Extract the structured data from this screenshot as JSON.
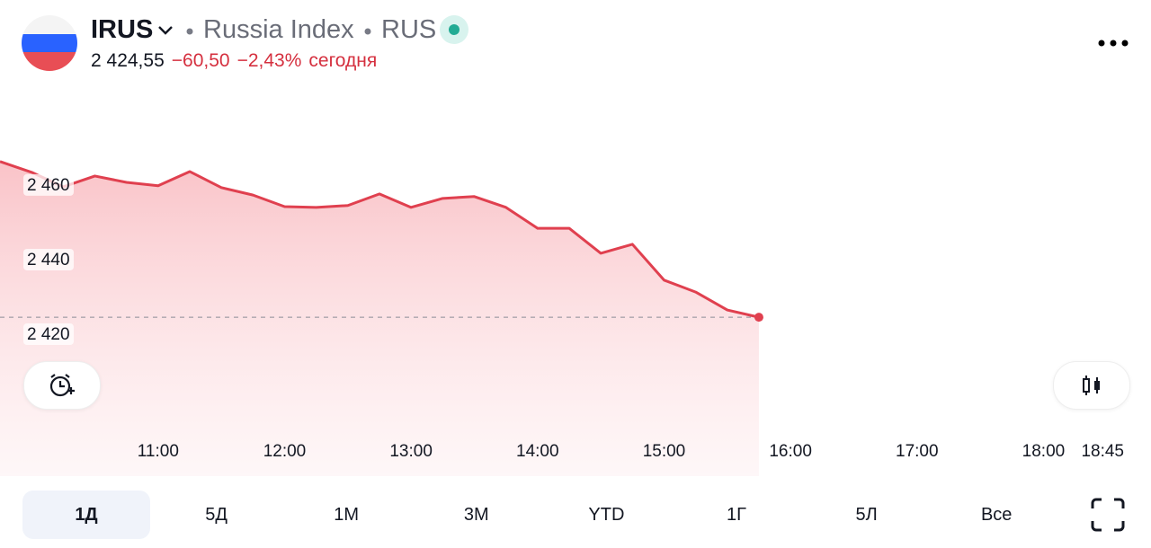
{
  "header": {
    "symbol": "IRUS",
    "name": "Russia Index",
    "exchange": "RUS",
    "price": "2 424,55",
    "change": "−60,50",
    "change_percent": "−2,43%",
    "period_note": "сегодня"
  },
  "chart_data": {
    "type": "line",
    "color": "#e0404f",
    "x": [
      9.75,
      10,
      10.25,
      10.5,
      10.75,
      11,
      11.25,
      11.5,
      11.75,
      12,
      12.25,
      12.5,
      12.75,
      13,
      13.25,
      13.5,
      13.75,
      14,
      14.25,
      14.5,
      14.75,
      15,
      15.25,
      15.5,
      15.75
    ],
    "values": [
      2466.3,
      2463.4,
      2459.5,
      2462.4,
      2460.7,
      2459.8,
      2463.6,
      2459.3,
      2457.3,
      2454.2,
      2454.0,
      2454.5,
      2457.6,
      2454.0,
      2456.4,
      2456.9,
      2454.0,
      2448.4,
      2448.4,
      2441.7,
      2444.1,
      2434.5,
      2431.3,
      2426.5,
      2424.55
    ],
    "xlim": [
      9.75,
      18.85
    ],
    "ylim": [
      2394,
      2485.5
    ],
    "xticks": [
      {
        "value": 11,
        "label": "11:00"
      },
      {
        "value": 12,
        "label": "12:00"
      },
      {
        "value": 13,
        "label": "13:00"
      },
      {
        "value": 14,
        "label": "14:00"
      },
      {
        "value": 15,
        "label": "15:00"
      },
      {
        "value": 16,
        "label": "16:00"
      },
      {
        "value": 17,
        "label": "17:00"
      },
      {
        "value": 18,
        "label": "18:00"
      },
      {
        "value": 18.75,
        "label": "18:45"
      }
    ],
    "yticks": [
      {
        "value": 2420,
        "label": "2 420"
      },
      {
        "value": 2440,
        "label": "2 440"
      },
      {
        "value": 2460,
        "label": "2 460"
      }
    ]
  },
  "periods": [
    "1Д",
    "5Д",
    "1М",
    "3М",
    "YTD",
    "1Г",
    "5Л",
    "Все"
  ]
}
